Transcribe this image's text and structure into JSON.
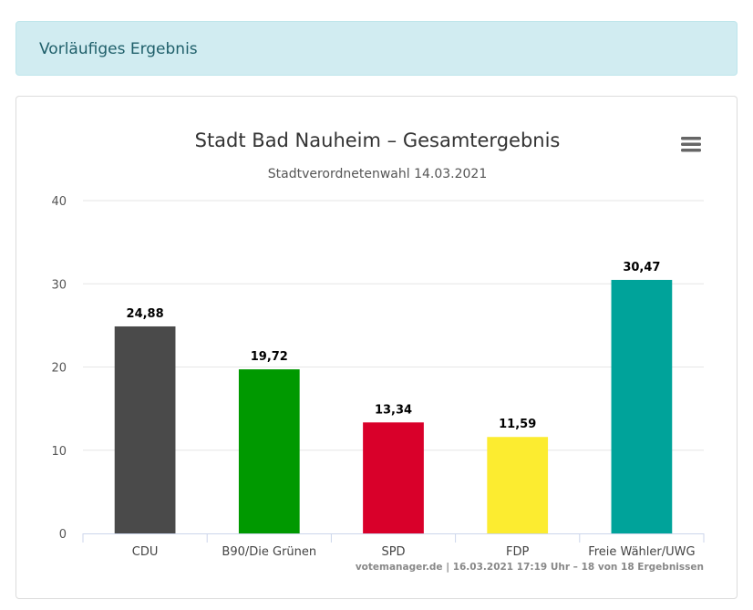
{
  "alert": {
    "text": "Vorläufiges Ergebnis"
  },
  "menu": {
    "icon": "hamburger-menu-icon"
  },
  "chart_data": {
    "type": "bar",
    "title": "Stadt Bad Nauheim – Gesamtergebnis",
    "subtitle": "Stadtverordnetenwahl 14.03.2021",
    "categories": [
      "CDU",
      "B90/Die Grünen",
      "SPD",
      "FDP",
      "Freie Wähler/UWG"
    ],
    "values": [
      24.88,
      19.72,
      13.34,
      11.59,
      30.47
    ],
    "value_labels": [
      "24,88",
      "19,72",
      "13,34",
      "11,59",
      "30,47"
    ],
    "colors": [
      "#4a4a4a",
      "#009900",
      "#d9002a",
      "#fcec30",
      "#00a39a"
    ],
    "xlabel": "",
    "ylabel": "",
    "ylim": [
      0,
      40
    ],
    "yticks": [
      0,
      10,
      20,
      30,
      40
    ],
    "grid": true,
    "legend": "none",
    "credits": "votemanager.de | 16.03.2021 17:19 Uhr – 18 von 18 Ergebnissen"
  }
}
